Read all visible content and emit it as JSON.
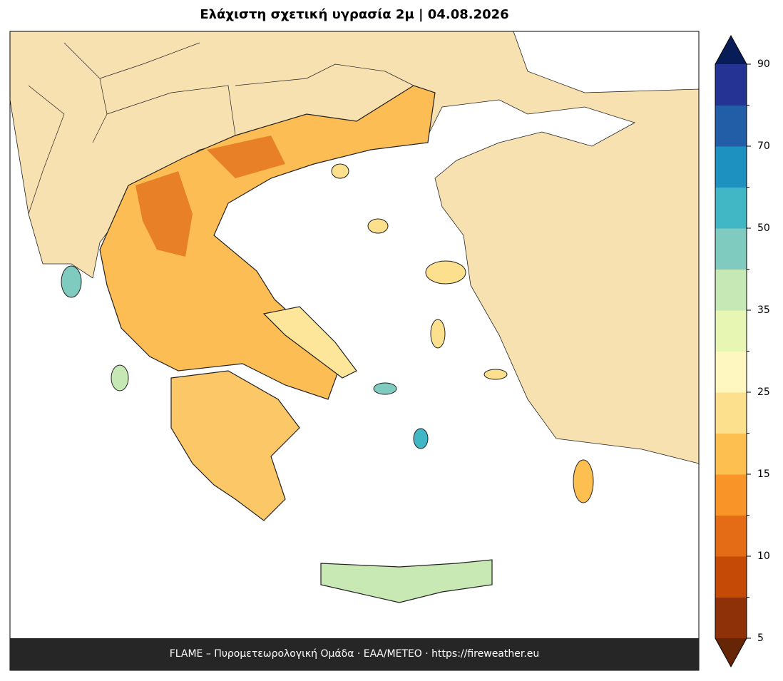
{
  "map": {
    "title": "Ελάχιστη σχετική υγρασία 2μ  |  04.08.2026",
    "footer": "FLAME – Πυρομετεωρολογική Ομάδα · ΕΑΑ/METEO · https://fireweather.eu",
    "colorbar": {
      "ticks": [
        5,
        10,
        15,
        25,
        35,
        50,
        70,
        90
      ],
      "colors": [
        "#8e3008",
        "#c44a05",
        "#e56c17",
        "#f99428",
        "#fdbf4f",
        "#fde08d",
        "#fff6c0",
        "#e8f6b4",
        "#c5e8b4",
        "#7fcbbf",
        "#41b6c4",
        "#1d91c0",
        "#225ea8",
        "#253494"
      ],
      "under_color": "#662506",
      "over_color": "#081d58"
    }
  }
}
